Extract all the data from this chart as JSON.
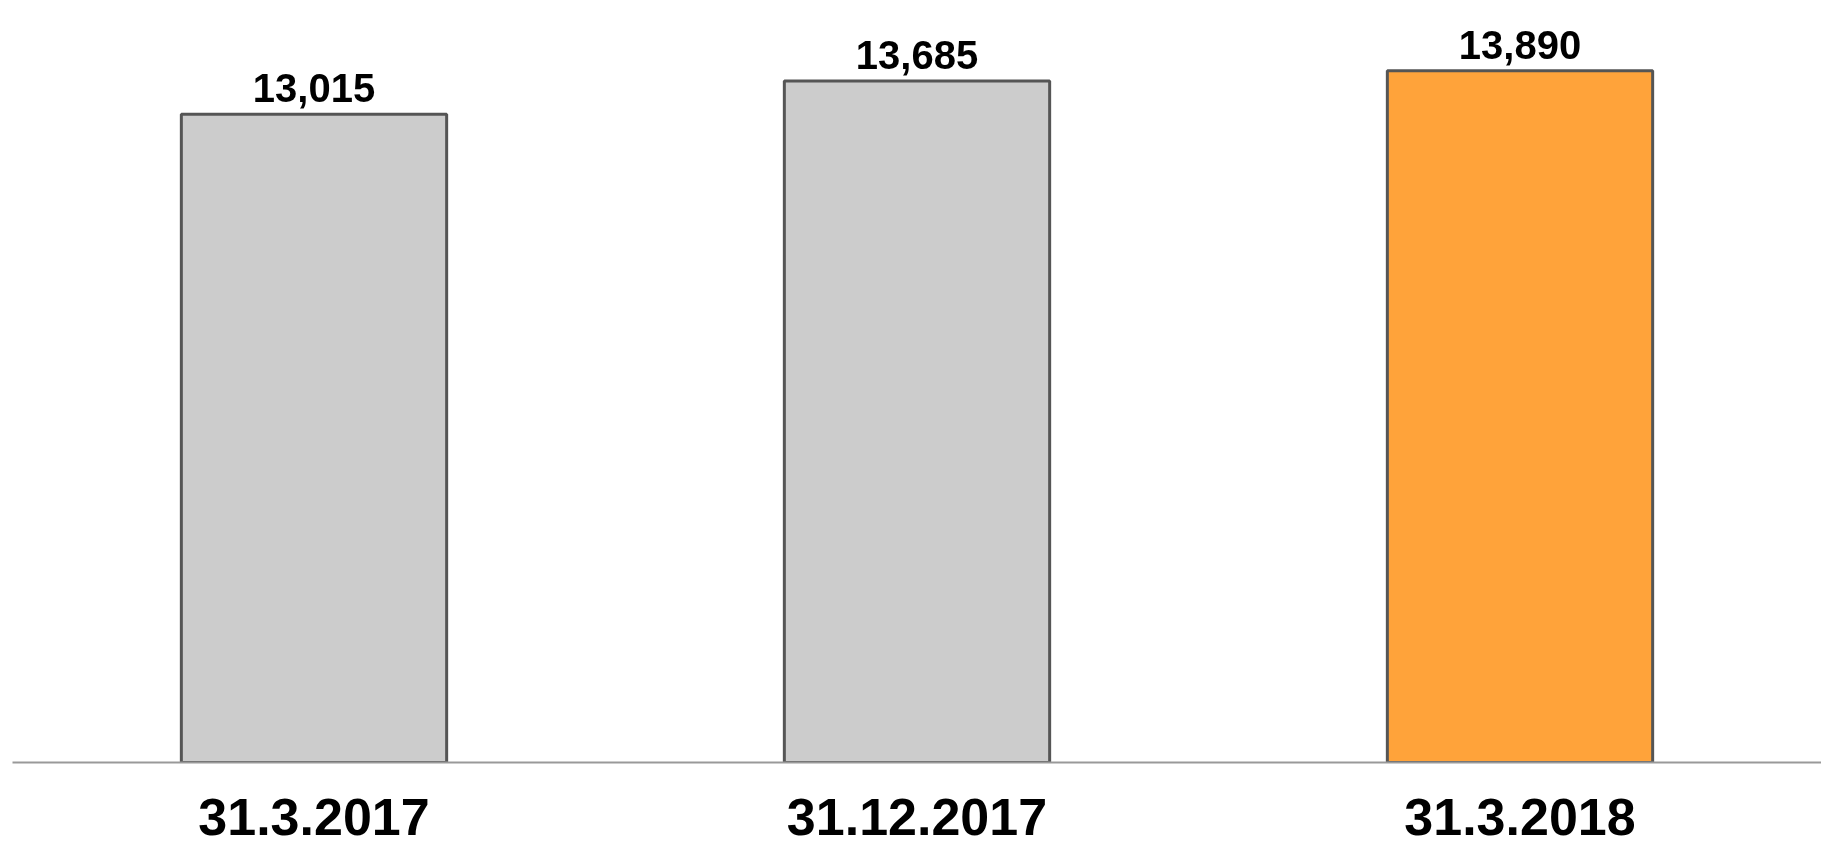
{
  "chart_data": {
    "type": "bar",
    "categories": [
      "31.3.2017",
      "31.12.2017",
      "31.3.2018"
    ],
    "values": [
      13015,
      13685,
      13890
    ],
    "value_labels": [
      "13,015",
      "13,685",
      "13,890"
    ],
    "colors": [
      "#cccccc",
      "#cccccc",
      "#ffa33a"
    ],
    "tick_labels": "x",
    "grid": false
  }
}
